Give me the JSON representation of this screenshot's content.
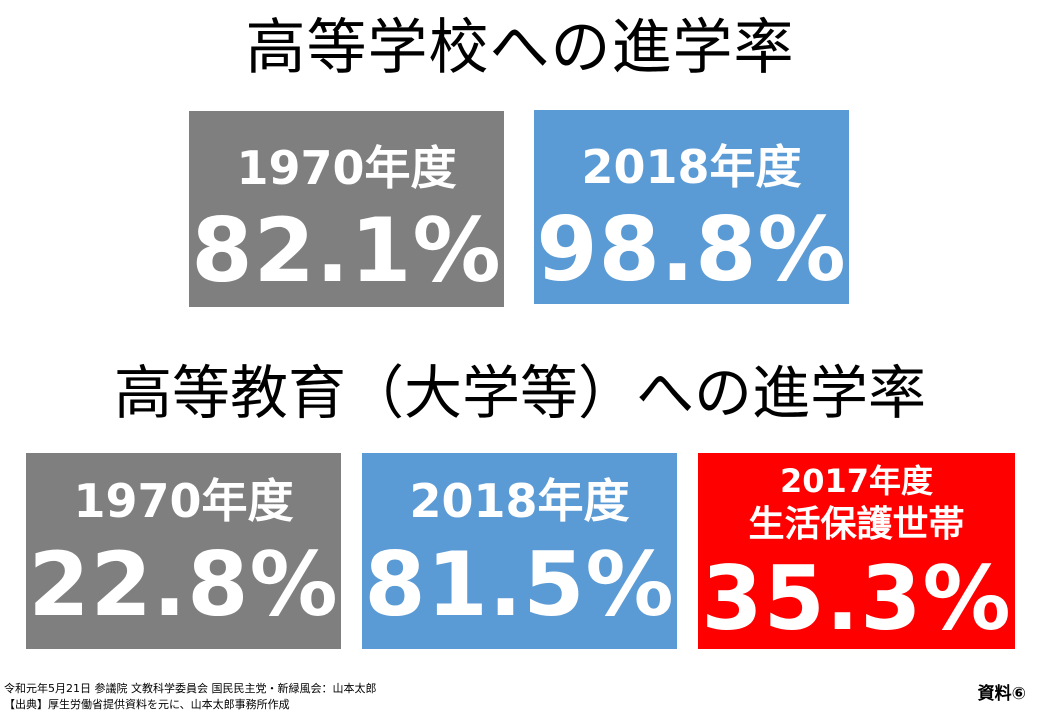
{
  "high_school": {
    "title": "高等学校への進学率",
    "stats": [
      {
        "year": "1970年度",
        "value": "82.1%",
        "color": "#7f7f7f"
      },
      {
        "year": "2018年度",
        "value": "98.8%",
        "color": "#5b9bd5"
      }
    ]
  },
  "higher_education": {
    "title": "高等教育（大学等）への進学率",
    "stats": [
      {
        "year": "1970年度",
        "value": "22.8%",
        "color": "#7f7f7f"
      },
      {
        "year": "2018年度",
        "value": "81.5%",
        "color": "#5b9bd5"
      },
      {
        "year": "2017年度",
        "subtitle": "生活保護世帯",
        "value": "35.3%",
        "color": "#ff0000"
      }
    ]
  },
  "footer": {
    "line1": "令和元年5月21日 参議院 文教科学委員会 国民民主党・新緑風会：山本太郎",
    "line2": "【出典】厚生労働省提供資料を元に、山本太郎事務所作成"
  },
  "document_label": "資料⑥"
}
